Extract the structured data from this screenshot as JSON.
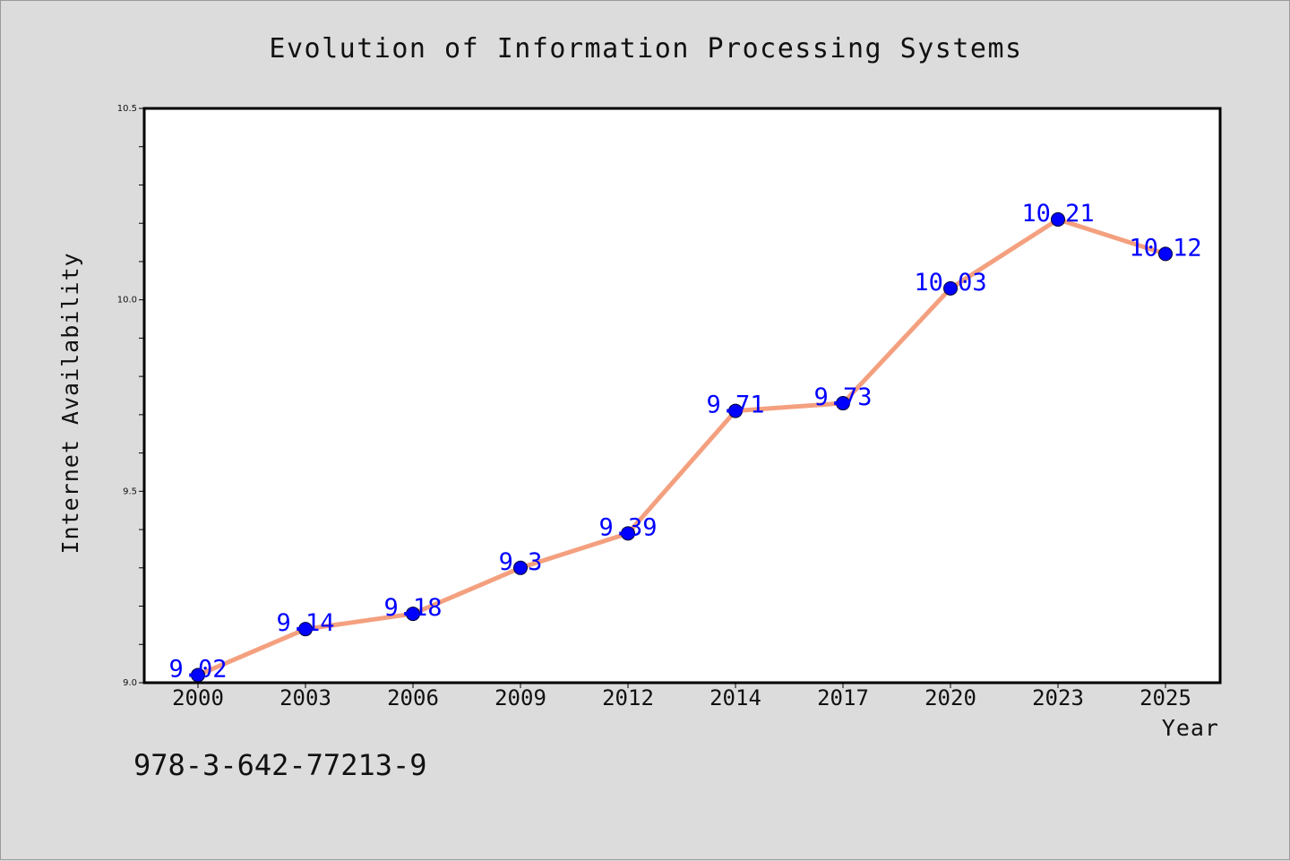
{
  "chart_data": {
    "type": "line",
    "title": "Evolution of Information Processing Systems",
    "xlabel": "Year",
    "ylabel": "Internet Availability",
    "categories": [
      "2000",
      "2003",
      "2006",
      "2009",
      "2012",
      "2014",
      "2017",
      "2020",
      "2023",
      "2025"
    ],
    "series": [
      {
        "values": [
          9.02,
          9.14,
          9.18,
          9.3,
          9.39,
          9.71,
          9.73,
          10.03,
          10.21,
          10.12
        ],
        "data_labels": [
          "9.02",
          "9.14",
          "9.18",
          "9.3",
          "9.39",
          "9.71",
          "9.73",
          "10.03",
          "10.21",
          "10.12"
        ],
        "line_color": "#f4a07f",
        "marker_color": "#0000ff"
      }
    ],
    "ylim": [
      9.0,
      10.5
    ],
    "yticks": [
      "9.0",
      "9.5",
      "10.0",
      "10.5"
    ],
    "grid": false,
    "legend": "none",
    "plot_background": "#ffffff",
    "figure_background": "#dcdcdc"
  },
  "footer_text": "978-3-642-77213-9"
}
